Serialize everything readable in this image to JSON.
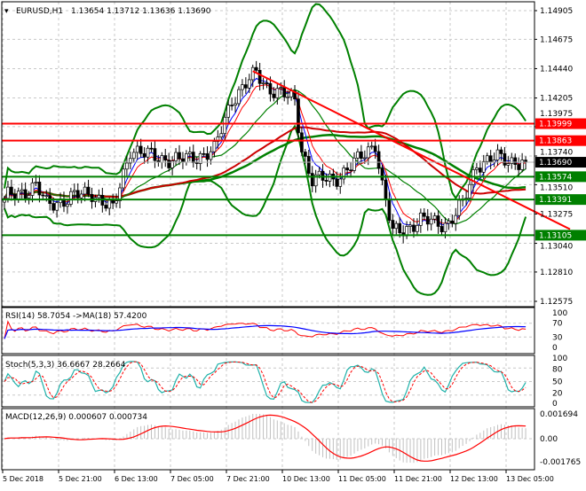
{
  "header": {
    "symbol": "EURUSD,H1",
    "ohlc": "1.13654 1.13712 1.13636 1.13690"
  },
  "colors": {
    "resistance": "#ff0000",
    "support": "#008000",
    "bands": "#008000",
    "current": "#000000",
    "rsi": "#ff0000",
    "rsi_ma": "#0000ff",
    "stoch_main": "#20b2aa",
    "stoch_signal": "#ff0000",
    "macd_hist": "#c0c0c0",
    "macd_signal": "#ff0000"
  },
  "chart_data": [
    {
      "type": "candlestick",
      "title": "EURUSD,H1",
      "ylim": [
        1.12575,
        1.14905
      ],
      "y_ticks": [
        "1.14905",
        "1.14675",
        "1.14440",
        "1.14205",
        "1.13975",
        "1.13740",
        "1.13510",
        "1.13275",
        "1.13040",
        "1.12810",
        "1.12575"
      ],
      "x_ticks": [
        "5 Dec 2018",
        "5 Dec 21:00",
        "6 Dec 13:00",
        "7 Dec 05:00",
        "7 Dec 21:00",
        "10 Dec 13:00",
        "11 Dec 05:00",
        "11 Dec 21:00",
        "12 Dec 13:00",
        "13 Dec 05:00"
      ],
      "current_price": "1.13690",
      "levels": [
        {
          "value": "1.13999",
          "kind": "resistance"
        },
        {
          "value": "1.13863",
          "kind": "resistance"
        },
        {
          "value": "1.13574",
          "kind": "support"
        },
        {
          "value": "1.13391",
          "kind": "support"
        },
        {
          "value": "1.13105",
          "kind": "support"
        }
      ],
      "trendline": [
        {
          "time": "10 Dec 04:00",
          "price": 1.1442
        },
        {
          "time": "13 Dec 10:00",
          "price": 1.1333
        }
      ],
      "close_series": [
        {
          "time": "5 Dec 05:00",
          "close": 1.134
        },
        {
          "time": "5 Dec 14:00",
          "close": 1.135
        },
        {
          "time": "5 Dec 17:00",
          "close": 1.1335
        },
        {
          "time": "6 Dec 06:00",
          "close": 1.1345
        },
        {
          "time": "6 Dec 12:00",
          "close": 1.133
        },
        {
          "time": "6 Dec 17:00",
          "close": 1.138
        },
        {
          "time": "6 Dec 21:00",
          "close": 1.1375
        },
        {
          "time": "7 Dec 07:00",
          "close": 1.137
        },
        {
          "time": "7 Dec 17:00",
          "close": 1.1378
        },
        {
          "time": "7 Dec 22:00",
          "close": 1.142
        },
        {
          "time": "10 Dec 05:00",
          "close": 1.144
        },
        {
          "time": "10 Dec 08:00",
          "close": 1.143
        },
        {
          "time": "10 Dec 16:00",
          "close": 1.1418
        },
        {
          "time": "10 Dec 18:00",
          "close": 1.138
        },
        {
          "time": "10 Dec 21:00",
          "close": 1.1355
        },
        {
          "time": "11 Dec 03:00",
          "close": 1.1355
        },
        {
          "time": "11 Dec 10:00",
          "close": 1.137
        },
        {
          "time": "11 Dec 15:00",
          "close": 1.1385
        },
        {
          "time": "11 Dec 17:00",
          "close": 1.135
        },
        {
          "time": "11 Dec 20:00",
          "close": 1.1312
        },
        {
          "time": "12 Dec 04:00",
          "close": 1.1322
        },
        {
          "time": "12 Dec 12:00",
          "close": 1.132
        },
        {
          "time": "12 Dec 16:00",
          "close": 1.1335
        },
        {
          "time": "12 Dec 20:00",
          "close": 1.1368
        },
        {
          "time": "13 Dec 02:00",
          "close": 1.1372
        },
        {
          "time": "13 Dec 10:00",
          "close": 1.1369
        }
      ]
    },
    {
      "type": "line",
      "title": "RSI(14) 58.7054  ->MA(18) 57.4200",
      "ylim": [
        0,
        100
      ],
      "y_ticks": [
        "100",
        "70",
        "30",
        "0"
      ]
    },
    {
      "type": "line",
      "title": "Stoch(5,3,3) 36.6667 28.2664",
      "ylim": [
        0,
        100
      ],
      "y_ticks": [
        "100",
        "80",
        "50",
        "20",
        "0"
      ]
    },
    {
      "type": "bar",
      "title": "MACD(12,26,9) 0.000607 0.000734",
      "ylim": [
        -0.001765,
        0.001694
      ],
      "y_ticks": [
        "0.001694",
        "0.00",
        "-0.001765"
      ]
    }
  ]
}
